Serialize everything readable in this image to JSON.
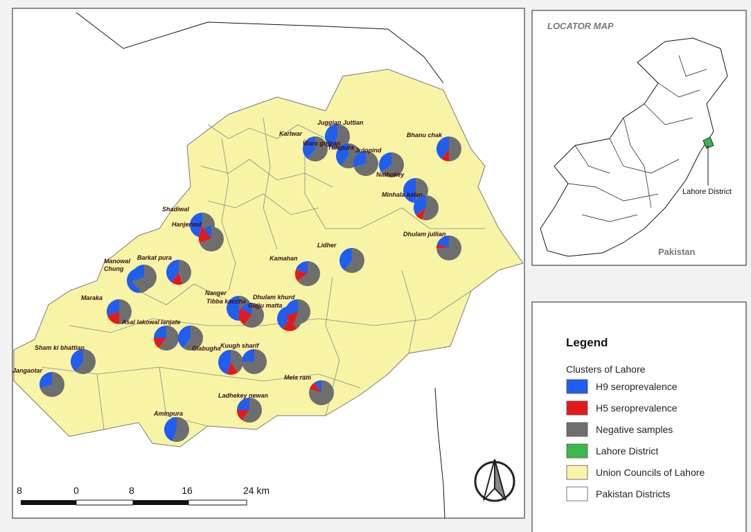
{
  "map": {
    "place_labels": [
      "Juggian Juttian",
      "Karlwar",
      "Wara gujjran",
      "Tulspura",
      "Julopind",
      "Bhanu chak",
      "Nathokey",
      "Minhala kalan",
      "Shadiwal",
      "Hanjerwal",
      "Lidher",
      "Dhulam jullian",
      "Manowal",
      "Chung",
      "Barkat pura",
      "Kamahan",
      "Maraka",
      "Nanger",
      "Tibba kaccha",
      "Dhulam khurd",
      "Gujju matta",
      "Asal lakowal",
      "lanjate",
      "Giabugha",
      "Kuugh sharif",
      "Sham ki bhattian",
      "Jangaotar",
      "Mela ram",
      "Ladhekey newan",
      "Aminpura"
    ],
    "pies": [
      {
        "h9": 40,
        "h5": 0,
        "neg": 60
      },
      {
        "h9": 45,
        "h5": 0,
        "neg": 55
      },
      {
        "h9": 40,
        "h5": 0,
        "neg": 60
      },
      {
        "h9": 30,
        "h5": 0,
        "neg": 70
      },
      {
        "h9": 35,
        "h5": 0,
        "neg": 65
      },
      {
        "h9": 40,
        "h5": 10,
        "neg": 50
      },
      {
        "h9": 50,
        "h5": 0,
        "neg": 50
      },
      {
        "h9": 35,
        "h5": 10,
        "neg": 55
      },
      {
        "h9": 20,
        "h5": 5,
        "neg": 75
      },
      {
        "h9": 40,
        "h5": 0,
        "neg": 60
      },
      {
        "h9": 20,
        "h5": 15,
        "neg": 65
      },
      {
        "h9": 45,
        "h5": 10,
        "neg": 45
      },
      {
        "h9": 10,
        "h5": 20,
        "neg": 70
      },
      {
        "h9": 40,
        "h5": 15,
        "neg": 45
      },
      {
        "h9": 50,
        "h5": 0,
        "neg": 50
      },
      {
        "h9": 30,
        "h5": 0,
        "neg": 70
      },
      {
        "h9": 30,
        "h5": 20,
        "neg": 50
      },
      {
        "h9": 25,
        "h5": 15,
        "neg": 60
      },
      {
        "h9": 40,
        "h5": 0,
        "neg": 60
      },
      {
        "h9": 50,
        "h5": 5,
        "neg": 45
      },
      {
        "h9": 15,
        "h5": 25,
        "neg": 60
      },
      {
        "h9": 40,
        "h5": 20,
        "neg": 40
      },
      {
        "h9": 30,
        "h5": 15,
        "neg": 55
      },
      {
        "h9": 45,
        "h5": 15,
        "neg": 40
      },
      {
        "h9": 25,
        "h5": 0,
        "neg": 75
      },
      {
        "h9": 40,
        "h5": 0,
        "neg": 60
      },
      {
        "h9": 30,
        "h5": 0,
        "neg": 70
      },
      {
        "h9": 10,
        "h5": 10,
        "neg": 80
      },
      {
        "h9": 25,
        "h5": 15,
        "neg": 60
      },
      {
        "h9": 45,
        "h5": 0,
        "neg": 55
      }
    ]
  },
  "scale_bar": {
    "labels": [
      "8",
      "0",
      "8",
      "16",
      "24 km"
    ]
  },
  "locator": {
    "title": "LOCATOR MAP",
    "district_label": "Lahore District",
    "country_label": "Pakistan"
  },
  "legend": {
    "title": "Legend",
    "subtitle": "Clusters of Lahore",
    "items": [
      {
        "label": "H9 seroprevalence",
        "color": "#1f5ef0"
      },
      {
        "label": "H5 seroprevalence",
        "color": "#e31a1c"
      },
      {
        "label": "Negative samples",
        "color": "#6e6e6e"
      },
      {
        "label": "Lahore District",
        "color": "#3cb84a"
      },
      {
        "label": "Union Councils of Lahore",
        "color": "#f8f4a6"
      },
      {
        "label": "Pakistan Districts",
        "color": "#ffffff"
      }
    ]
  }
}
